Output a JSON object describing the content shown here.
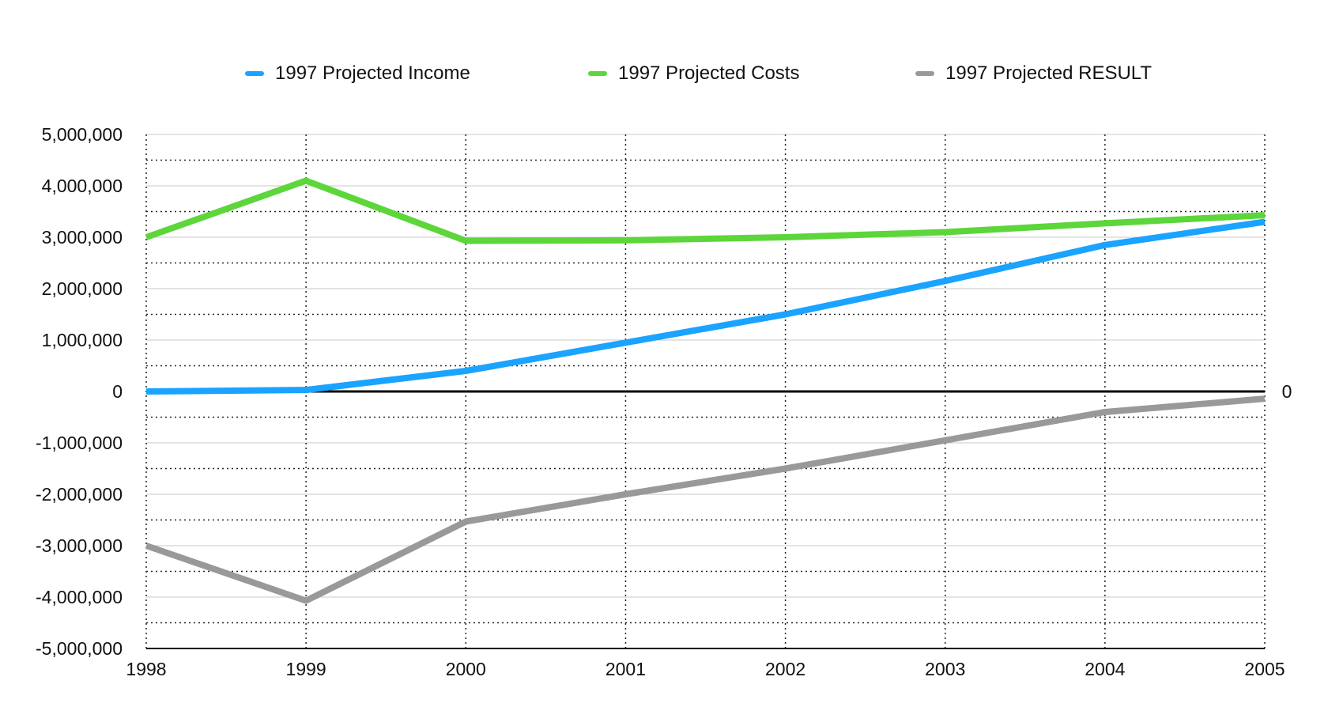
{
  "chart_data": {
    "type": "line",
    "title": "",
    "xlabel": "",
    "ylabel": "",
    "x": [
      "1998",
      "1999",
      "2000",
      "2001",
      "2002",
      "2003",
      "2004",
      "2005"
    ],
    "ylim": [
      -5000000,
      5000000
    ],
    "y_ticks": [
      5000000,
      4000000,
      3000000,
      2000000,
      1000000,
      0,
      -1000000,
      -2000000,
      -3000000,
      -4000000,
      -5000000
    ],
    "y_tick_labels": [
      "5,000,000",
      "4,000,000",
      "3,000,000",
      "2,000,000",
      "1,000,000",
      "0",
      "-1,000,000",
      "-2,000,000",
      "-3,000,000",
      "-4,000,000",
      "-5,000,000"
    ],
    "right_axis_label": "0",
    "grid": true,
    "legend_position": "top",
    "series": [
      {
        "name": "1997 Projected Income",
        "color": "#1aa3ff",
        "values": [
          0,
          30000,
          400000,
          950000,
          1500000,
          2150000,
          2850000,
          3300000
        ]
      },
      {
        "name": "1997 Projected Costs",
        "color": "#5cd63a",
        "values": [
          3000000,
          4100000,
          2930000,
          2940000,
          3000000,
          3100000,
          3270000,
          3430000
        ]
      },
      {
        "name": "1997 Projected RESULT",
        "color": "#999999",
        "values": [
          -3000000,
          -4070000,
          -2530000,
          -2000000,
          -1500000,
          -950000,
          -400000,
          -140000
        ]
      }
    ]
  }
}
